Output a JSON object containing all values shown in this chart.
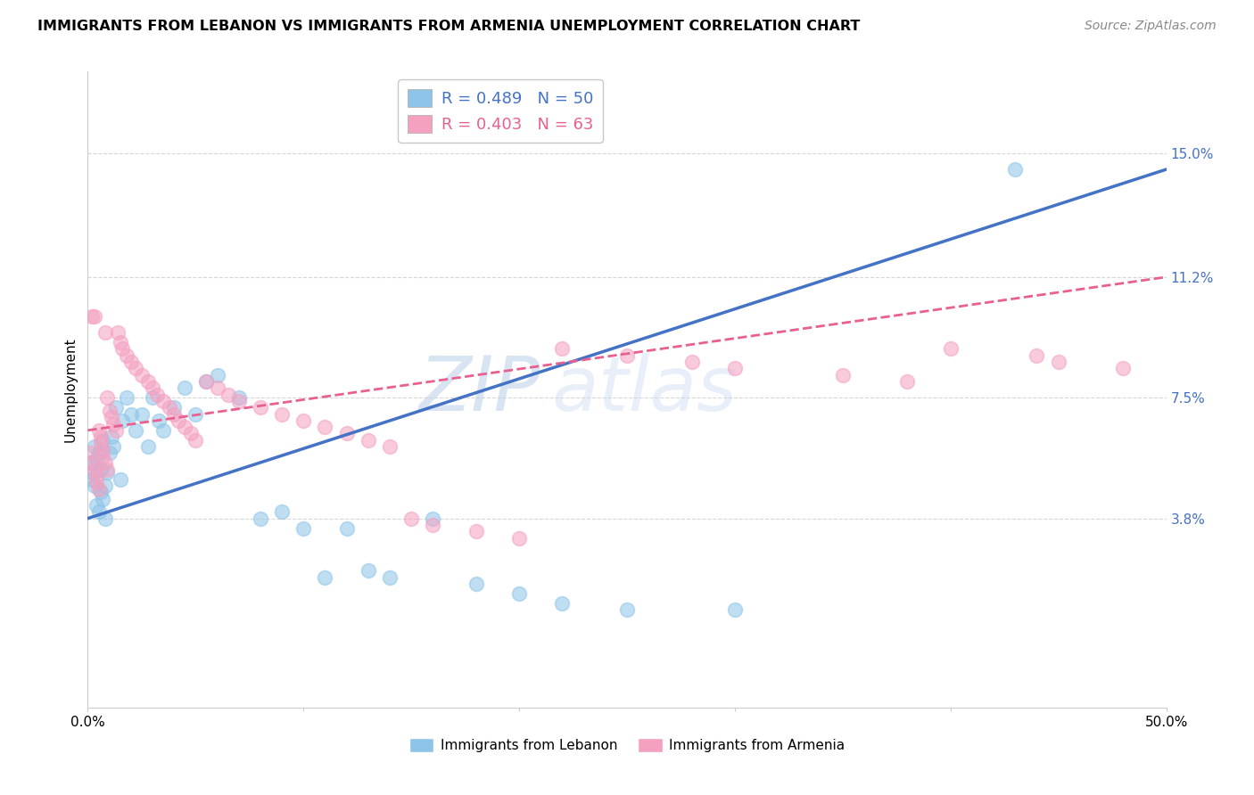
{
  "title": "IMMIGRANTS FROM LEBANON VS IMMIGRANTS FROM ARMENIA UNEMPLOYMENT CORRELATION CHART",
  "source": "Source: ZipAtlas.com",
  "ylabel": "Unemployment",
  "yticks": [
    0.038,
    0.075,
    0.112,
    0.15
  ],
  "ytick_labels": [
    "3.8%",
    "7.5%",
    "11.2%",
    "15.0%"
  ],
  "xlim": [
    0.0,
    0.5
  ],
  "ylim": [
    -0.02,
    0.175
  ],
  "color_lebanon": "#8dc4e8",
  "color_armenia": "#f4a0c0",
  "color_line_lebanon": "#4472c4",
  "color_line_armenia": "#e86090",
  "watermark_zip": "ZIP",
  "watermark_atlas": "atlas",
  "leb_line_x0": 0.0,
  "leb_line_y0": 0.038,
  "leb_line_x1": 0.5,
  "leb_line_y1": 0.145,
  "arm_line_x0": 0.0,
  "arm_line_y0": 0.065,
  "arm_line_x1": 0.5,
  "arm_line_y1": 0.112,
  "lebanon_x": [
    0.001,
    0.002,
    0.002,
    0.003,
    0.003,
    0.004,
    0.004,
    0.005,
    0.005,
    0.006,
    0.006,
    0.007,
    0.007,
    0.008,
    0.008,
    0.009,
    0.01,
    0.011,
    0.012,
    0.013,
    0.015,
    0.016,
    0.018,
    0.02,
    0.022,
    0.025,
    0.028,
    0.03,
    0.033,
    0.035,
    0.04,
    0.045,
    0.05,
    0.055,
    0.06,
    0.07,
    0.08,
    0.09,
    0.1,
    0.11,
    0.12,
    0.13,
    0.14,
    0.16,
    0.18,
    0.2,
    0.22,
    0.25,
    0.3,
    0.43
  ],
  "lebanon_y": [
    0.055,
    0.052,
    0.05,
    0.048,
    0.06,
    0.056,
    0.042,
    0.04,
    0.058,
    0.053,
    0.046,
    0.044,
    0.062,
    0.048,
    0.038,
    0.052,
    0.058,
    0.063,
    0.06,
    0.072,
    0.05,
    0.068,
    0.075,
    0.07,
    0.065,
    0.07,
    0.06,
    0.075,
    0.068,
    0.065,
    0.072,
    0.078,
    0.07,
    0.08,
    0.082,
    0.075,
    0.038,
    0.04,
    0.035,
    0.02,
    0.035,
    0.022,
    0.02,
    0.038,
    0.018,
    0.015,
    0.012,
    0.01,
    0.01,
    0.145
  ],
  "armenia_x": [
    0.001,
    0.002,
    0.002,
    0.003,
    0.003,
    0.004,
    0.004,
    0.005,
    0.005,
    0.006,
    0.006,
    0.007,
    0.007,
    0.008,
    0.008,
    0.009,
    0.009,
    0.01,
    0.011,
    0.012,
    0.013,
    0.014,
    0.015,
    0.016,
    0.018,
    0.02,
    0.022,
    0.025,
    0.028,
    0.03,
    0.032,
    0.035,
    0.038,
    0.04,
    0.042,
    0.045,
    0.048,
    0.05,
    0.055,
    0.06,
    0.065,
    0.07,
    0.08,
    0.09,
    0.1,
    0.11,
    0.12,
    0.13,
    0.14,
    0.15,
    0.16,
    0.18,
    0.2,
    0.22,
    0.25,
    0.28,
    0.3,
    0.35,
    0.38,
    0.4,
    0.44,
    0.45,
    0.48
  ],
  "armenia_y": [
    0.058,
    0.1,
    0.055,
    0.1,
    0.053,
    0.051,
    0.049,
    0.047,
    0.065,
    0.063,
    0.061,
    0.059,
    0.057,
    0.095,
    0.055,
    0.053,
    0.075,
    0.071,
    0.069,
    0.067,
    0.065,
    0.095,
    0.092,
    0.09,
    0.088,
    0.086,
    0.084,
    0.082,
    0.08,
    0.078,
    0.076,
    0.074,
    0.072,
    0.07,
    0.068,
    0.066,
    0.064,
    0.062,
    0.08,
    0.078,
    0.076,
    0.074,
    0.072,
    0.07,
    0.068,
    0.066,
    0.064,
    0.062,
    0.06,
    0.038,
    0.036,
    0.034,
    0.032,
    0.09,
    0.088,
    0.086,
    0.084,
    0.082,
    0.08,
    0.09,
    0.088,
    0.086,
    0.084
  ]
}
